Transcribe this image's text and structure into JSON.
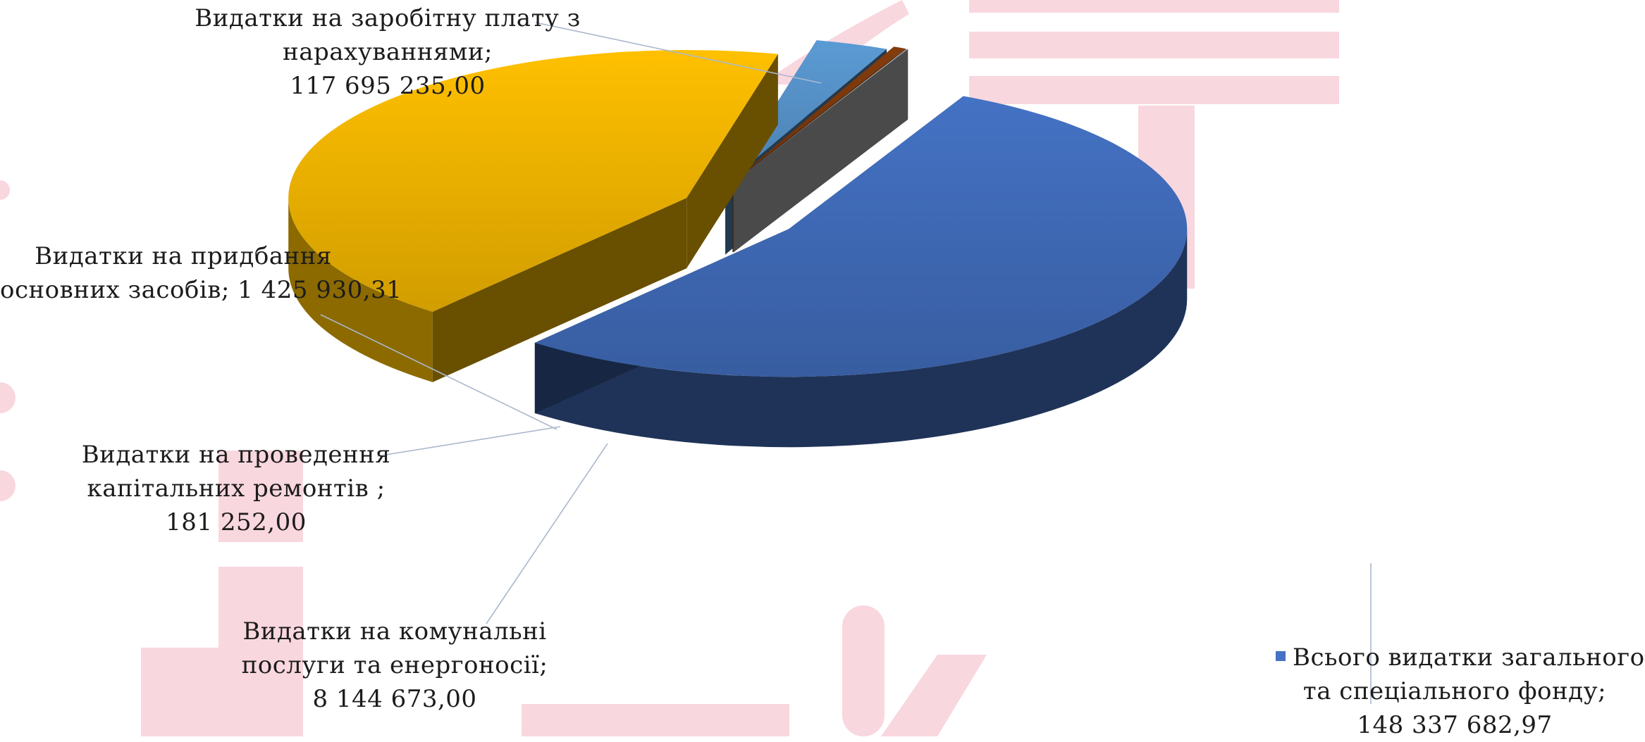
{
  "chart_data": {
    "type": "pie",
    "style": "3d-exploded",
    "slices": [
      {
        "name": "Всього видатки загального та спеціального фонду",
        "value": 148337682.97,
        "label_lines": [
          "Всього видатки загального",
          "та спеціального фонду;",
          "148 337 682,97"
        ],
        "color": "#4472c4",
        "legend_marker": true
      },
      {
        "name": "Видатки на заробітну плату з нарахуваннями",
        "value": 117695235.0,
        "label_lines": [
          "Видатки на заробітну плату з",
          "нарахуваннями;",
          "117 695 235,00"
        ],
        "color": "#ffc000"
      },
      {
        "name": "Видатки на комунальні послуги та енергоносії",
        "value": 8144673.0,
        "label_lines": [
          "Видатки на комунальні",
          "послуги та енергоносії;",
          "8 144 673,00"
        ],
        "color": "#5b9bd5"
      },
      {
        "name": "Видатки на придбання основних засобів",
        "value": 1425930.31,
        "label_lines": [
          "Видатки на придбання",
          "основних засобів; 1 425 930,31"
        ],
        "color": "#843c0c"
      },
      {
        "name": "Видатки на проведення капітальних ремонтів",
        "value": 181252.0,
        "label_lines": [
          "Видатки на проведення",
          "капітальних ремонтів ;",
          "181 252,00"
        ],
        "color": "#a5a5a5"
      }
    ]
  }
}
